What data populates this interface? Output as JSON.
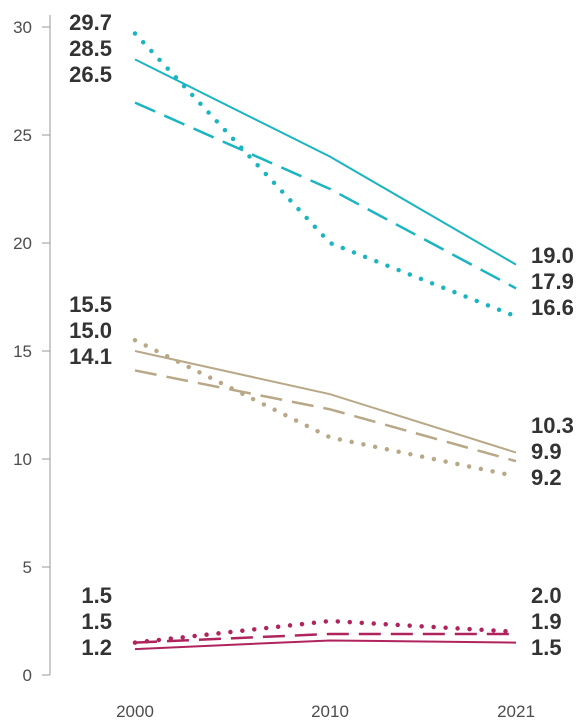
{
  "chart_data": {
    "type": "line",
    "x": [
      2000,
      2010,
      2021
    ],
    "xticks": [
      "2000",
      "2010",
      "2021"
    ],
    "yticks": [
      "0",
      "5",
      "10",
      "15",
      "20",
      "25",
      "30"
    ],
    "ylim": [
      0,
      30
    ],
    "grid": false,
    "series": [
      {
        "group": "teal",
        "style": "dotted",
        "color": "#1bb5c1",
        "values": [
          29.7,
          20.0,
          16.6
        ],
        "labels": [
          "29.7",
          "",
          "16.6"
        ]
      },
      {
        "group": "teal",
        "style": "solid",
        "color": "#1bb5c1",
        "values": [
          28.5,
          24.0,
          19.0
        ],
        "labels": [
          "28.5",
          "",
          "19.0"
        ]
      },
      {
        "group": "teal",
        "style": "dashed",
        "color": "#1bb5c1",
        "values": [
          26.5,
          22.5,
          17.9
        ],
        "labels": [
          "26.5",
          "",
          "17.9"
        ]
      },
      {
        "group": "tan",
        "style": "dotted",
        "color": "#b9a888",
        "values": [
          15.5,
          11.0,
          9.2
        ],
        "labels": [
          "15.5",
          "",
          "9.2"
        ]
      },
      {
        "group": "tan",
        "style": "solid",
        "color": "#b9a888",
        "values": [
          15.0,
          13.0,
          10.3
        ],
        "labels": [
          "15.0",
          "",
          "10.3"
        ]
      },
      {
        "group": "tan",
        "style": "dashed",
        "color": "#b9a888",
        "values": [
          14.1,
          12.3,
          9.9
        ],
        "labels": [
          "14.1",
          "",
          "9.9"
        ]
      },
      {
        "group": "magenta",
        "style": "dotted",
        "color": "#b0245e",
        "values": [
          1.5,
          2.5,
          2.0
        ],
        "labels": [
          "1.5",
          "",
          "2.0"
        ]
      },
      {
        "group": "magenta",
        "style": "dashed",
        "color": "#b0245e",
        "values": [
          1.5,
          1.9,
          1.9
        ],
        "labels": [
          "1.5",
          "",
          "1.9"
        ]
      },
      {
        "group": "magenta",
        "style": "solid",
        "color": "#b0245e",
        "values": [
          1.2,
          1.6,
          1.5
        ],
        "labels": [
          "1.2",
          "",
          "1.5"
        ]
      }
    ]
  }
}
